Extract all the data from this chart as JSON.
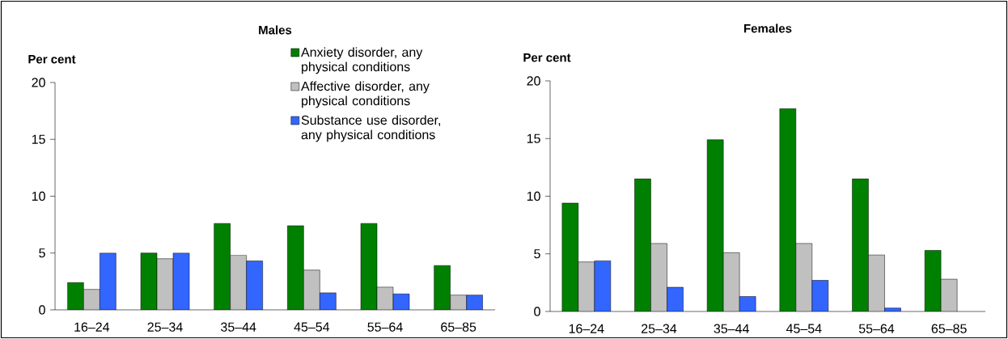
{
  "chart_data": [
    {
      "type": "bar",
      "title": "Males",
      "ylabel": "Per cent",
      "categories": [
        "16–24",
        "25–34",
        "35–44",
        "45–54",
        "55–64",
        "65–85"
      ],
      "ylim": [
        0,
        20
      ],
      "yticks": [
        0,
        5,
        10,
        15,
        20
      ],
      "legend": "top right",
      "series": [
        {
          "name": "Anxiety disorder, any physical conditions",
          "color": "#008000",
          "values": [
            2.4,
            5.0,
            7.6,
            7.4,
            7.6,
            3.9
          ]
        },
        {
          "name": "Affective disorder, any physical conditions",
          "color": "#c0c0c0",
          "values": [
            1.8,
            4.5,
            4.8,
            3.5,
            2.0,
            1.3
          ]
        },
        {
          "name": "Substance use disorder, any physical conditions",
          "color": "#3366ff",
          "values": [
            5.0,
            5.0,
            4.3,
            1.5,
            1.4,
            1.3
          ]
        }
      ]
    },
    {
      "type": "bar",
      "title": "Females",
      "ylabel": "Per cent",
      "categories": [
        "16–24",
        "25–34",
        "35–44",
        "45–54",
        "55–64",
        "65–85"
      ],
      "ylim": [
        0,
        20
      ],
      "yticks": [
        0,
        5,
        10,
        15,
        20
      ],
      "series": [
        {
          "color": "#008000",
          "values": [
            9.4,
            11.5,
            14.9,
            17.6,
            11.5,
            5.3
          ]
        },
        {
          "color": "#c0c0c0",
          "values": [
            4.3,
            5.9,
            5.1,
            5.9,
            4.9,
            2.8
          ]
        },
        {
          "color": "#3366ff",
          "values": [
            4.4,
            2.1,
            1.3,
            2.7,
            0.3,
            null
          ]
        }
      ]
    }
  ]
}
